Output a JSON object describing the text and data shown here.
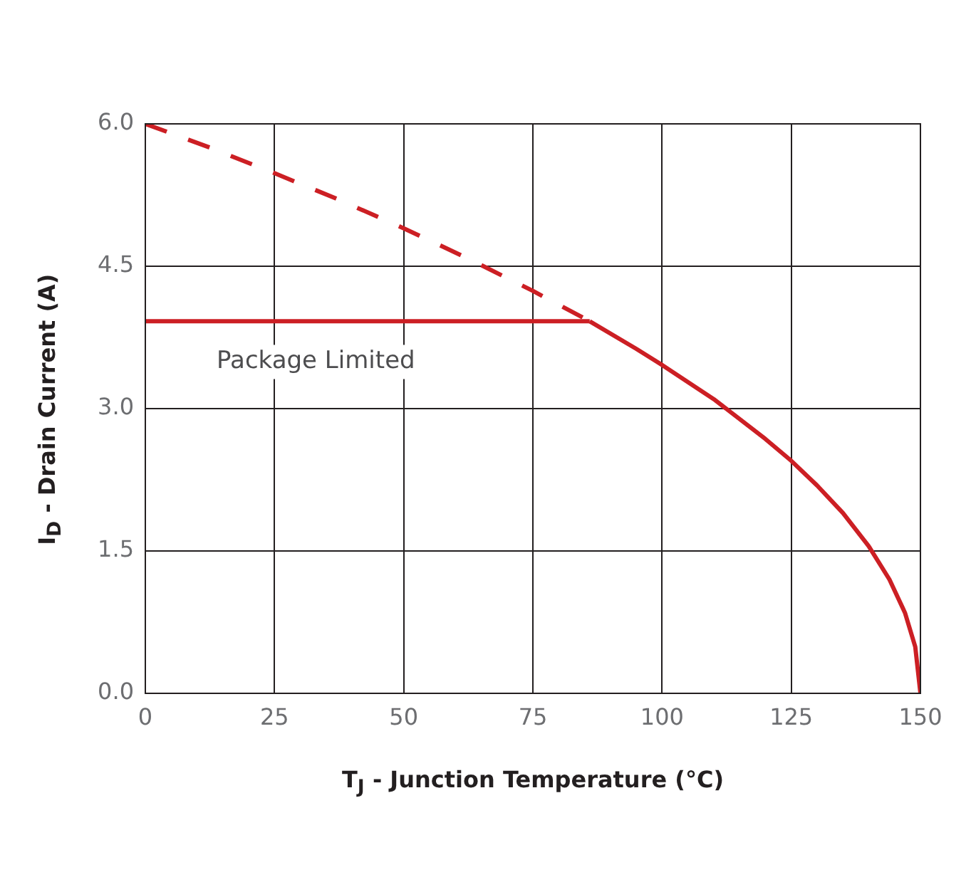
{
  "chart_data": {
    "type": "line",
    "xlabel": "T$_{J}$ - Junction Temperature (°C)",
    "ylabel": "I$_{D}$ - Drain Current (A)",
    "xlim": [
      0,
      150
    ],
    "xticks": [
      0,
      25,
      50,
      75,
      100,
      125,
      150
    ],
    "ylim": [
      0,
      6
    ],
    "yticks": [
      {
        "value": 0,
        "label": "0.0"
      },
      {
        "value": 1.5,
        "label": "1.5"
      },
      {
        "value": 3,
        "label": "3.0"
      },
      {
        "value": 4.5,
        "label": "4.5"
      },
      {
        "value": 6,
        "label": "6.0"
      }
    ],
    "grid": true,
    "legend": false,
    "marker": "none",
    "series": [
      {
        "color": "#cc1f24",
        "line_style": "dashed",
        "x": [
          0,
          12.5,
          25,
          37.5,
          50,
          62.5,
          75,
          86
        ],
        "values": [
          6,
          5.75,
          5.48,
          5.2,
          4.9,
          4.58,
          4.24,
          3.92
        ]
      },
      {
        "color": "#cc1f24",
        "line_style": "solid",
        "x": [
          0,
          86
        ],
        "values": [
          3.92,
          3.92
        ]
      },
      {
        "color": "#cc1f24",
        "line_style": "solid",
        "x": [
          86,
          95,
          100,
          110,
          120,
          125,
          130,
          135,
          140,
          144,
          147,
          149,
          150
        ],
        "values": [
          3.92,
          3.63,
          3.46,
          3.1,
          2.68,
          2.45,
          2.19,
          1.9,
          1.55,
          1.2,
          0.85,
          0.49,
          0
        ]
      }
    ],
    "annotations": [
      "Package Limited"
    ]
  }
}
